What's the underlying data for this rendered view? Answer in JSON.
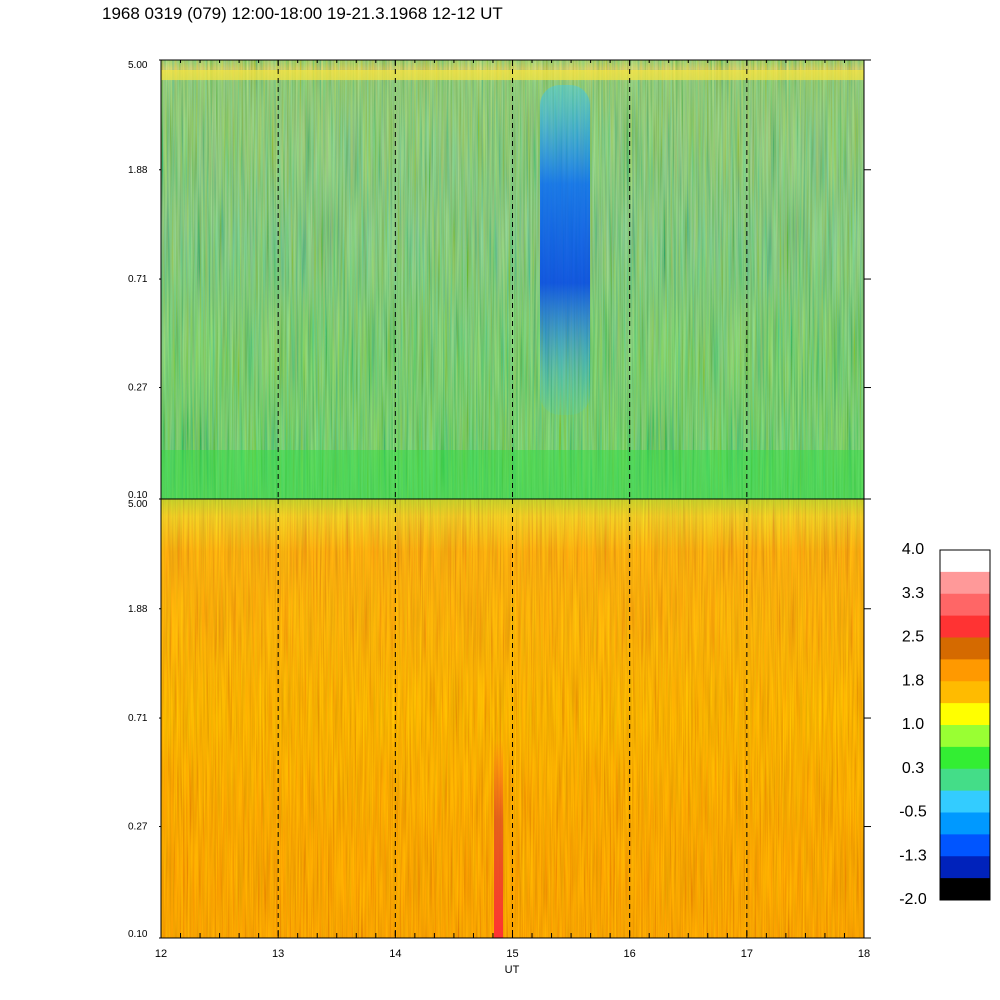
{
  "title": "1968 0319 (079) 12:00-18:00 19-21.3.1968  12-12 UT",
  "chart_data": {
    "type": "heatmap",
    "xlabel": "UT",
    "x_ticks": [
      "12",
      "13",
      "14",
      "15",
      "16",
      "17",
      "18"
    ],
    "xlim": [
      12,
      18
    ],
    "panels": [
      {
        "name": "upper",
        "y_ticks": [
          "5.00",
          "1.88",
          "0.71",
          "0.27",
          "0.10"
        ],
        "ylim": [
          0.1,
          5.0
        ],
        "y_scale": "log",
        "dominant_values": "0.3 to 1.0 (green)",
        "features": [
          {
            "description": "low-value region",
            "x_range": [
              15.25,
              15.6
            ],
            "y_range": [
              0.3,
              4.5
            ],
            "value": -1.3
          }
        ]
      },
      {
        "name": "lower",
        "y_ticks": [
          "5.00",
          "1.88",
          "0.71",
          "0.27",
          "0.10"
        ],
        "ylim": [
          0.1,
          5.0
        ],
        "y_scale": "log",
        "dominant_values": "1.8 to 2.5 (orange)",
        "features": [
          {
            "description": "high-value streak",
            "x_range": [
              14.85,
              14.92
            ],
            "y_range": [
              0.1,
              0.5
            ],
            "value": 2.9
          }
        ]
      }
    ],
    "dashed_time_markers": [
      13,
      14,
      15,
      16,
      17
    ],
    "colorbar": {
      "labels": [
        "4.0",
        "3.3",
        "2.5",
        "1.8",
        "1.0",
        "0.3",
        "-0.5",
        "-1.3",
        "-2.0"
      ],
      "colors": [
        "#ffffff",
        "#ff9999",
        "#ff6666",
        "#ff3333",
        "#d56a00",
        "#ff9900",
        "#ffbb00",
        "#ffff00",
        "#99ff33",
        "#33ee33",
        "#44dd88",
        "#33ccff",
        "#0099ff",
        "#0055ff",
        "#0022bb",
        "#000000"
      ]
    }
  }
}
